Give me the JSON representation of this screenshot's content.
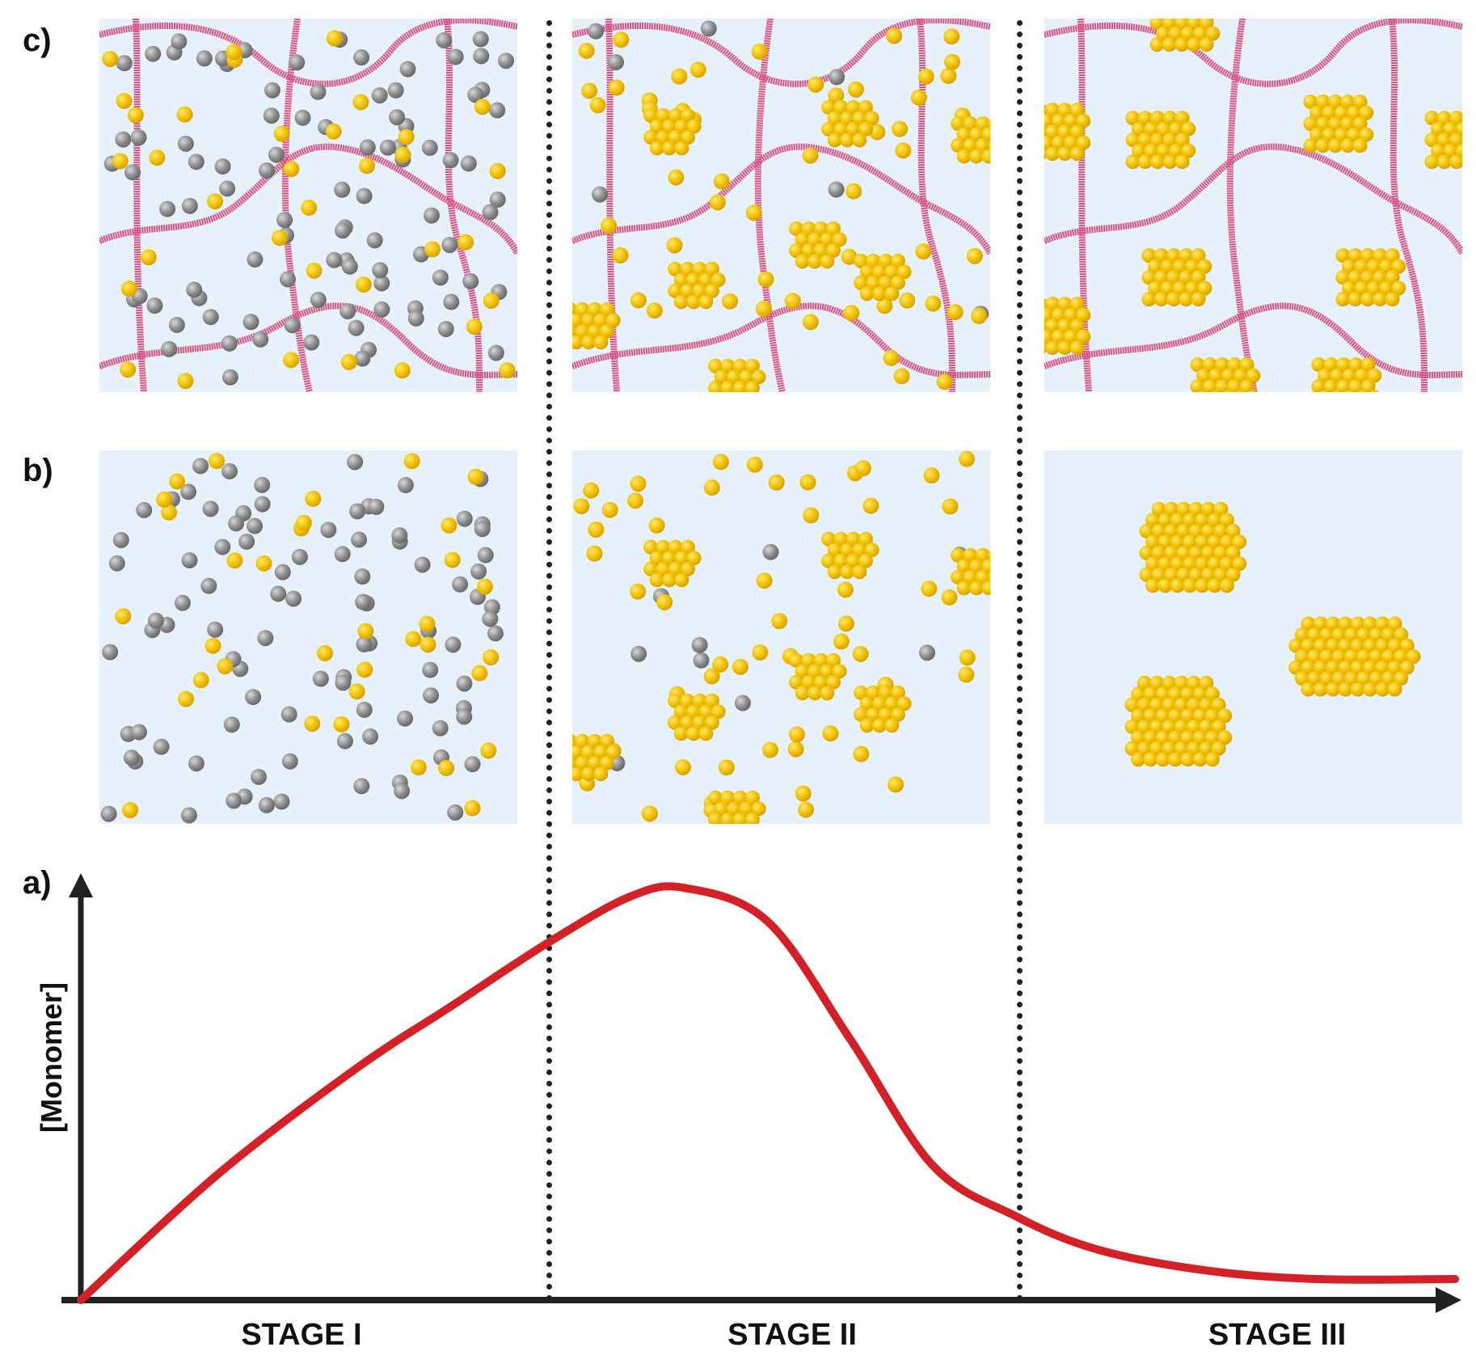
{
  "labels": {
    "row_c": "c)",
    "row_b": "b)",
    "row_a": "a)"
  },
  "panels": {
    "row_c_description": "Monomers (grey) and nuclei/particles (yellow) inside a polymer network (pink strands)",
    "row_b_description": "Monomers (grey) and nuclei/particles (yellow) in free solution",
    "stage_I": "Mostly grey monomer spheres with scattered yellow nuclei",
    "stage_II": "Mostly yellow nuclei forming small clusters, few grey monomers",
    "stage_III": "Large yellow clusters (network confines cluster size in row c)"
  },
  "colors": {
    "panel_bg": "#e6f1fb",
    "monomer": "#8e8e8e",
    "nucleus": "#f2c200",
    "network": "#d9507e",
    "curve": "#d42027",
    "axis": "#222222"
  },
  "chart_data": {
    "type": "line",
    "title": "",
    "xlabel": "",
    "ylabel": "[Monomer]",
    "categories": [
      "STAGE I",
      "STAGE II",
      "STAGE III"
    ],
    "stage_boundaries_x": [
      0.34,
      0.68
    ],
    "x": [
      0.0,
      0.1,
      0.2,
      0.27,
      0.34,
      0.4,
      0.44,
      0.5,
      0.56,
      0.62,
      0.68,
      0.74,
      0.82,
      0.9,
      1.0
    ],
    "values": [
      0.0,
      0.3,
      0.55,
      0.7,
      0.85,
      0.96,
      0.98,
      0.9,
      0.62,
      0.32,
      0.2,
      0.12,
      0.07,
      0.05,
      0.05
    ],
    "ylim": [
      0,
      1
    ],
    "xlim": [
      0,
      1
    ],
    "grid": false,
    "legend": false
  },
  "graph": {
    "ylabel": "[Monomer]",
    "stages": [
      "STAGE I",
      "STAGE II",
      "STAGE III"
    ]
  }
}
